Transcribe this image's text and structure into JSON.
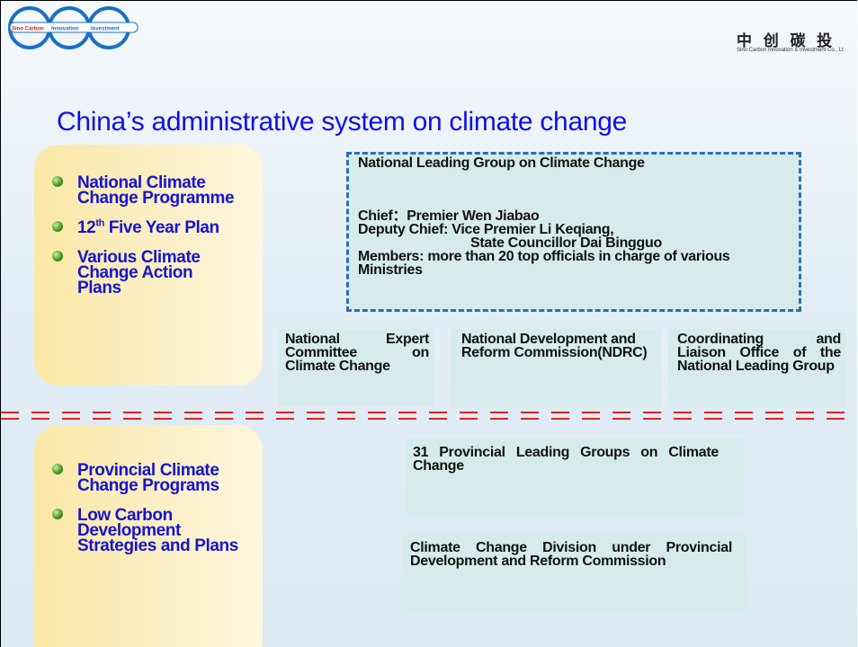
{
  "header": {
    "logo_labels": [
      "Sino Carbon",
      "Innovation",
      "Investment"
    ],
    "company_cn": "中 创 碳 投",
    "company_en": "Sino Carbon Innovation & Investment Co., Lt"
  },
  "title": "China’s administrative system on climate change",
  "national": {
    "bullets": [
      "National Climate Change Programme",
      [
        "12",
        "th",
        " Five Year Plan"
      ],
      "Various Climate Change Action Plans"
    ]
  },
  "leading_group": {
    "title": "National Leading Group on Climate Change",
    "lines": [
      "Chief：Premier Wen Jiabao",
      "Deputy Chief: Vice Premier Li Keqiang,",
      "State Councillor Dai Bingguo",
      "Members: more than 20 top officials in charge of various Ministries"
    ]
  },
  "bodies": [
    "National Expert Committee on Climate Change",
    "National Development and Reform Commission(NDRC)",
    "Coordinating and Liaison Office of the National Leading Group"
  ],
  "provincial": {
    "bullets": [
      "Provincial Climate Change Programs",
      "Low Carbon Development Strategies and Plans"
    ],
    "boxes": [
      "31 Provincial Leading Groups on Climate Change",
      "Climate Change Division under Provincial Development and Reform Commission"
    ]
  }
}
